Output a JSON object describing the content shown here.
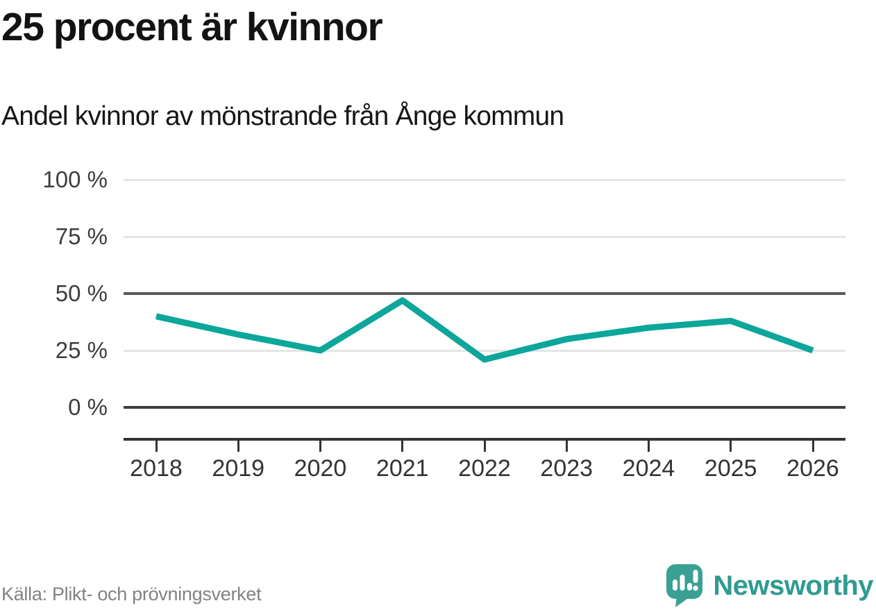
{
  "header": {
    "title": "25 procent är kvinnor",
    "subtitle": "Andel kvinnor av mönstrande från Ånge kommun"
  },
  "chart_data": {
    "type": "line",
    "title": "25 procent är kvinnor",
    "subtitle": "Andel kvinnor av mönstrande från Ånge kommun",
    "x": [
      2018,
      2019,
      2020,
      2021,
      2022,
      2023,
      2024,
      2025,
      2026
    ],
    "xtick_labels": [
      "2018",
      "2019",
      "2020",
      "2021",
      "2022",
      "2023",
      "2024",
      "2025",
      "2026"
    ],
    "series": [
      {
        "name": "Andel kvinnor av mönstrande",
        "values": [
          40,
          32,
          25,
          47,
          21,
          30,
          35,
          38,
          25
        ]
      }
    ],
    "unit": "%",
    "ylim": [
      0,
      100
    ],
    "yticks": [
      0,
      25,
      50,
      75,
      100
    ],
    "ytick_labels": [
      "0 %",
      "25 %",
      "50 %",
      "75 %",
      "100 %"
    ],
    "grid": "horizontal",
    "emphasized_gridlines": [
      0,
      50
    ],
    "legend": "none",
    "line_color": "#0ca69a"
  },
  "footer": {
    "source": "Källa: Plikt- och prövningsverket",
    "brand": "Newsworthy"
  },
  "colors": {
    "line_teal": "#0ca69a",
    "brand_teal": "#3aa096",
    "brand_text_teal": "#2f9b92",
    "grid_light": "#e4e4e4",
    "grid_dark": "#58595b",
    "axis_dark": "#333333",
    "title_color": "#131313",
    "source_gray": "#828282"
  },
  "icons": {
    "logo": "newsworthy-bubble-chart-icon"
  }
}
